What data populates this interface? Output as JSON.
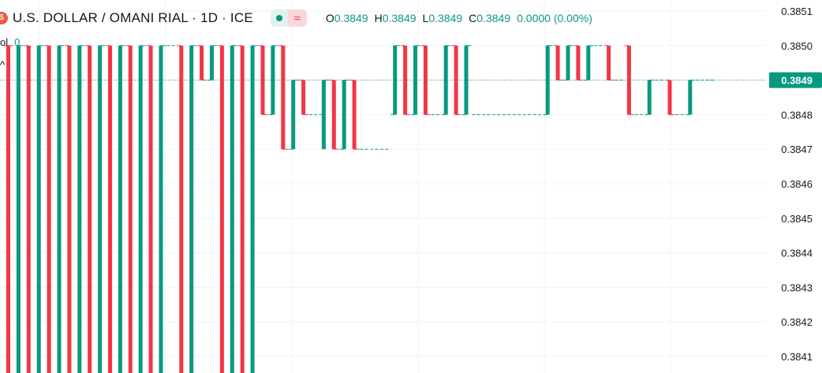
{
  "header": {
    "title": "U.S. DOLLAR / OMANI RIAL · 1D · ICE",
    "ohlc": {
      "o_label": "O",
      "o": "0.3849",
      "h_label": "H",
      "h": "0.3849",
      "l_label": "L",
      "l": "0.3849",
      "c_label": "C",
      "c": "0.3849",
      "change": "0.0000 (0.00%)"
    },
    "pill_icon": "≈"
  },
  "volume": {
    "label": "ol",
    "value": "0"
  },
  "colors": {
    "up": "#089981",
    "down": "#f23645",
    "grid": "#f0f3fa",
    "text": "#131722"
  },
  "chart_data": {
    "type": "bar",
    "style": "ohlc-bars",
    "ylim": [
      0.38405,
      0.38515
    ],
    "y_ticks": [
      "0.3851",
      "0.3850",
      "0.3849",
      "0.3848",
      "0.3847",
      "0.3846",
      "0.3845",
      "0.3844",
      "0.3843",
      "0.3842",
      "0.3841"
    ],
    "last_price": "0.3849",
    "series": [
      {
        "x": 1,
        "open": 0.385,
        "high": 0.385,
        "low": 0.384,
        "close": 0.385,
        "dir": "down"
      },
      {
        "x": 2,
        "open": 0.384,
        "high": 0.385,
        "low": 0.384,
        "close": 0.385,
        "dir": "up"
      },
      {
        "x": 3,
        "open": 0.385,
        "high": 0.385,
        "low": 0.384,
        "close": 0.384,
        "dir": "down"
      },
      {
        "x": 4,
        "open": 0.384,
        "high": 0.385,
        "low": 0.384,
        "close": 0.385,
        "dir": "up"
      },
      {
        "x": 5,
        "open": 0.385,
        "high": 0.385,
        "low": 0.384,
        "close": 0.384,
        "dir": "down"
      },
      {
        "x": 6,
        "open": 0.384,
        "high": 0.385,
        "low": 0.384,
        "close": 0.385,
        "dir": "up"
      },
      {
        "x": 7,
        "open": 0.385,
        "high": 0.385,
        "low": 0.384,
        "close": 0.384,
        "dir": "down"
      },
      {
        "x": 8,
        "open": 0.384,
        "high": 0.385,
        "low": 0.384,
        "close": 0.385,
        "dir": "up"
      },
      {
        "x": 9,
        "open": 0.385,
        "high": 0.385,
        "low": 0.384,
        "close": 0.384,
        "dir": "down"
      },
      {
        "x": 10,
        "open": 0.384,
        "high": 0.385,
        "low": 0.384,
        "close": 0.385,
        "dir": "up"
      },
      {
        "x": 11,
        "open": 0.385,
        "high": 0.385,
        "low": 0.384,
        "close": 0.384,
        "dir": "down"
      },
      {
        "x": 12,
        "open": 0.384,
        "high": 0.385,
        "low": 0.384,
        "close": 0.385,
        "dir": "up"
      },
      {
        "x": 13,
        "open": 0.385,
        "high": 0.385,
        "low": 0.384,
        "close": 0.384,
        "dir": "down"
      },
      {
        "x": 14,
        "open": 0.384,
        "high": 0.385,
        "low": 0.384,
        "close": 0.385,
        "dir": "up"
      },
      {
        "x": 15,
        "open": 0.385,
        "high": 0.385,
        "low": 0.384,
        "close": 0.384,
        "dir": "down"
      },
      {
        "x": 16,
        "open": 0.384,
        "high": 0.385,
        "low": 0.384,
        "close": 0.385,
        "dir": "up"
      },
      {
        "x": 17,
        "open": 0.385,
        "high": 0.385,
        "low": 0.385,
        "close": 0.385,
        "dir": "flat"
      },
      {
        "x": 18,
        "open": 0.385,
        "high": 0.385,
        "low": 0.384,
        "close": 0.384,
        "dir": "down"
      },
      {
        "x": 19,
        "open": 0.384,
        "high": 0.385,
        "low": 0.384,
        "close": 0.385,
        "dir": "up"
      },
      {
        "x": 20,
        "open": 0.385,
        "high": 0.385,
        "low": 0.3849,
        "close": 0.3849,
        "dir": "down"
      },
      {
        "x": 21,
        "open": 0.3849,
        "high": 0.385,
        "low": 0.3849,
        "close": 0.385,
        "dir": "up"
      },
      {
        "x": 22,
        "open": 0.385,
        "high": 0.385,
        "low": 0.384,
        "close": 0.384,
        "dir": "down"
      },
      {
        "x": 23,
        "open": 0.384,
        "high": 0.385,
        "low": 0.384,
        "close": 0.385,
        "dir": "up"
      },
      {
        "x": 24,
        "open": 0.385,
        "high": 0.385,
        "low": 0.384,
        "close": 0.384,
        "dir": "down"
      },
      {
        "x": 25,
        "open": 0.384,
        "high": 0.385,
        "low": 0.384,
        "close": 0.385,
        "dir": "up"
      },
      {
        "x": 26,
        "open": 0.385,
        "high": 0.385,
        "low": 0.3848,
        "close": 0.3848,
        "dir": "down"
      },
      {
        "x": 27,
        "open": 0.3848,
        "high": 0.385,
        "low": 0.3848,
        "close": 0.385,
        "dir": "up"
      },
      {
        "x": 28,
        "open": 0.385,
        "high": 0.385,
        "low": 0.3847,
        "close": 0.3847,
        "dir": "down"
      },
      {
        "x": 29,
        "open": 0.3847,
        "high": 0.3849,
        "low": 0.3847,
        "close": 0.3849,
        "dir": "up"
      },
      {
        "x": 30,
        "open": 0.3849,
        "high": 0.3849,
        "low": 0.3848,
        "close": 0.3848,
        "dir": "down"
      },
      {
        "x": 31,
        "open": 0.3848,
        "high": 0.3848,
        "low": 0.3848,
        "close": 0.3848,
        "dir": "flat"
      },
      {
        "x": 32,
        "open": 0.3848,
        "high": 0.3849,
        "low": 0.3847,
        "close": 0.3849,
        "dir": "up"
      },
      {
        "x": 33,
        "open": 0.3849,
        "high": 0.3849,
        "low": 0.3847,
        "close": 0.3847,
        "dir": "down"
      },
      {
        "x": 34,
        "open": 0.3847,
        "high": 0.3849,
        "low": 0.3847,
        "close": 0.3849,
        "dir": "up"
      },
      {
        "x": 35,
        "open": 0.3849,
        "high": 0.3849,
        "low": 0.3847,
        "close": 0.3847,
        "dir": "down"
      },
      {
        "x": 36,
        "open": 0.3847,
        "high": 0.3847,
        "low": 0.3847,
        "close": 0.3847,
        "dir": "flat"
      },
      {
        "x": 37,
        "open": 0.3847,
        "high": 0.3847,
        "low": 0.3847,
        "close": 0.3847,
        "dir": "flat"
      },
      {
        "x": 38,
        "open": 0.3847,
        "high": 0.3847,
        "low": 0.3847,
        "close": 0.3847,
        "dir": "flat"
      },
      {
        "x": 39,
        "open": 0.3848,
        "high": 0.385,
        "low": 0.3848,
        "close": 0.385,
        "dir": "up"
      },
      {
        "x": 40,
        "open": 0.385,
        "high": 0.385,
        "low": 0.3848,
        "close": 0.3848,
        "dir": "down"
      },
      {
        "x": 41,
        "open": 0.3848,
        "high": 0.385,
        "low": 0.3848,
        "close": 0.385,
        "dir": "up"
      },
      {
        "x": 42,
        "open": 0.385,
        "high": 0.385,
        "low": 0.3848,
        "close": 0.3848,
        "dir": "down"
      },
      {
        "x": 43,
        "open": 0.3848,
        "high": 0.3848,
        "low": 0.3848,
        "close": 0.3848,
        "dir": "flat"
      },
      {
        "x": 44,
        "open": 0.3848,
        "high": 0.385,
        "low": 0.3848,
        "close": 0.385,
        "dir": "up"
      },
      {
        "x": 45,
        "open": 0.385,
        "high": 0.385,
        "low": 0.3848,
        "close": 0.3848,
        "dir": "down"
      },
      {
        "x": 46,
        "open": 0.3848,
        "high": 0.385,
        "low": 0.3848,
        "close": 0.385,
        "dir": "up"
      },
      {
        "x": 47,
        "open": 0.3848,
        "high": 0.3848,
        "low": 0.3848,
        "close": 0.3848,
        "dir": "flat"
      },
      {
        "x": 48,
        "open": 0.3848,
        "high": 0.3848,
        "low": 0.3848,
        "close": 0.3848,
        "dir": "flat"
      },
      {
        "x": 49,
        "open": 0.3848,
        "high": 0.3848,
        "low": 0.3848,
        "close": 0.3848,
        "dir": "flat"
      },
      {
        "x": 50,
        "open": 0.3848,
        "high": 0.3848,
        "low": 0.3848,
        "close": 0.3848,
        "dir": "flat"
      },
      {
        "x": 51,
        "open": 0.3848,
        "high": 0.3848,
        "low": 0.3848,
        "close": 0.3848,
        "dir": "flat"
      },
      {
        "x": 52,
        "open": 0.3848,
        "high": 0.3848,
        "low": 0.3848,
        "close": 0.3848,
        "dir": "flat"
      },
      {
        "x": 53,
        "open": 0.3848,
        "high": 0.3848,
        "low": 0.3848,
        "close": 0.3848,
        "dir": "flat"
      },
      {
        "x": 54,
        "open": 0.3848,
        "high": 0.385,
        "low": 0.3848,
        "close": 0.385,
        "dir": "up"
      },
      {
        "x": 55,
        "open": 0.385,
        "high": 0.385,
        "low": 0.3849,
        "close": 0.3849,
        "dir": "down"
      },
      {
        "x": 56,
        "open": 0.3849,
        "high": 0.385,
        "low": 0.3849,
        "close": 0.385,
        "dir": "up"
      },
      {
        "x": 57,
        "open": 0.385,
        "high": 0.385,
        "low": 0.3849,
        "close": 0.3849,
        "dir": "down"
      },
      {
        "x": 58,
        "open": 0.3849,
        "high": 0.385,
        "low": 0.3849,
        "close": 0.385,
        "dir": "up"
      },
      {
        "x": 59,
        "open": 0.385,
        "high": 0.385,
        "low": 0.385,
        "close": 0.385,
        "dir": "flat"
      },
      {
        "x": 60,
        "open": 0.385,
        "high": 0.385,
        "low": 0.3849,
        "close": 0.3849,
        "dir": "down"
      },
      {
        "x": 61,
        "open": 0.3849,
        "high": 0.3849,
        "low": 0.3849,
        "close": 0.3849,
        "dir": "flat"
      },
      {
        "x": 62,
        "open": 0.385,
        "high": 0.385,
        "low": 0.3848,
        "close": 0.3848,
        "dir": "down"
      },
      {
        "x": 63,
        "open": 0.3848,
        "high": 0.3848,
        "low": 0.3848,
        "close": 0.3848,
        "dir": "flat"
      },
      {
        "x": 64,
        "open": 0.3848,
        "high": 0.3849,
        "low": 0.3848,
        "close": 0.3849,
        "dir": "up"
      },
      {
        "x": 65,
        "open": 0.3849,
        "high": 0.3849,
        "low": 0.3849,
        "close": 0.3849,
        "dir": "flat"
      },
      {
        "x": 66,
        "open": 0.3849,
        "high": 0.3849,
        "low": 0.3848,
        "close": 0.3848,
        "dir": "down"
      },
      {
        "x": 67,
        "open": 0.3848,
        "high": 0.3848,
        "low": 0.3848,
        "close": 0.3848,
        "dir": "flat"
      },
      {
        "x": 68,
        "open": 0.3848,
        "high": 0.3849,
        "low": 0.3848,
        "close": 0.3849,
        "dir": "up"
      },
      {
        "x": 69,
        "open": 0.3849,
        "high": 0.3849,
        "low": 0.3849,
        "close": 0.3849,
        "dir": "flat"
      },
      {
        "x": 70,
        "open": 0.3849,
        "high": 0.3849,
        "low": 0.3849,
        "close": 0.3849,
        "dir": "flat"
      }
    ]
  }
}
